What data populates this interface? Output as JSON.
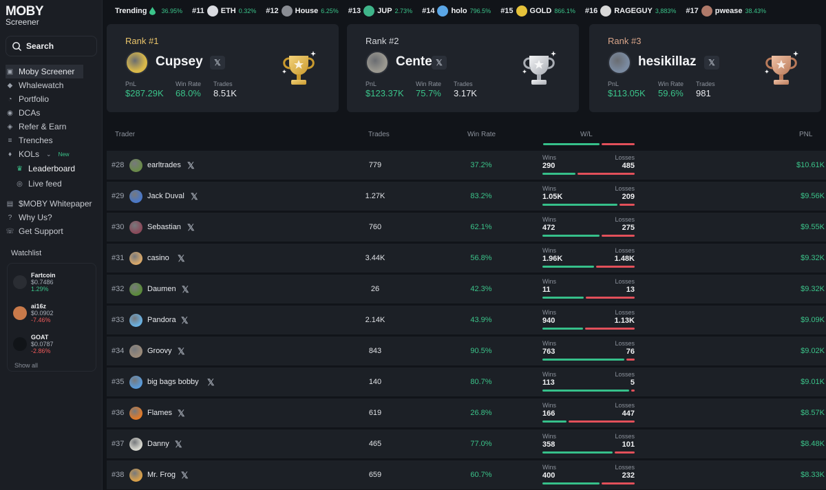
{
  "app": {
    "logo": "MOBY",
    "logo_sub": "Screener"
  },
  "search": {
    "label": "Search"
  },
  "nav": [
    {
      "label": "Moby Screener",
      "icon": "moby-icon"
    },
    {
      "label": "Whalewatch",
      "icon": "whale-icon"
    },
    {
      "label": "Portfolio",
      "icon": "pie-chart-icon"
    },
    {
      "label": "DCAs",
      "icon": "dca-icon"
    },
    {
      "label": "Refer & Earn",
      "icon": "gift-icon"
    },
    {
      "label": "Trenches",
      "icon": "trenches-icon"
    },
    {
      "label": "KOLs",
      "icon": "microphone-icon",
      "badge": "New"
    },
    {
      "label": "Leaderboard",
      "icon": "trophy-icon"
    },
    {
      "label": "Live feed",
      "icon": "broadcast-icon"
    },
    {
      "label": "$MOBY Whitepaper",
      "icon": "book-icon"
    },
    {
      "label": "Why Us?",
      "icon": "question-icon"
    },
    {
      "label": "Get Support",
      "icon": "support-icon"
    }
  ],
  "watchlist": {
    "title": "Watchlist",
    "items": [
      {
        "name": "Fartcoin",
        "price": "$0.7486",
        "change": "1.29%",
        "dir": "up",
        "color": "#2a2d33"
      },
      {
        "name": "ai16z",
        "price": "$0.0902",
        "change": "-7.46%",
        "dir": "down",
        "color": "#c97a4a"
      },
      {
        "name": "GOAT",
        "price": "$0.0787",
        "change": "-2.86%",
        "dir": "down",
        "color": "#111418"
      }
    ],
    "show_all": "Show all"
  },
  "trending": {
    "label": "Trending",
    "lead_pct": "36.95%",
    "items": [
      {
        "rank": "#11",
        "ticker": "ETH",
        "pct": "0.32%",
        "color": "#d9dbe0"
      },
      {
        "rank": "#12",
        "ticker": "House",
        "pct": "6.25%",
        "color": "#8a8d94"
      },
      {
        "rank": "#13",
        "ticker": "JUP",
        "pct": "2.73%",
        "color": "#3fb58a"
      },
      {
        "rank": "#14",
        "ticker": "holo",
        "pct": "796.5%",
        "color": "#5aa6e6"
      },
      {
        "rank": "#15",
        "ticker": "GOLD",
        "pct": "866.1%",
        "color": "#e6c23a"
      },
      {
        "rank": "#16",
        "ticker": "RAGEGUY",
        "pct": "3,883%",
        "color": "#d8d8d8"
      },
      {
        "rank": "#17",
        "ticker": "pwease",
        "pct": "38.43%",
        "color": "#b07a6a"
      }
    ]
  },
  "podium": [
    {
      "rank": "Rank #1",
      "name": "Cupsey",
      "pnl_label": "PnL",
      "pnl": "$287.29K",
      "winrate_label": "Win Rate",
      "winrate": "68.0%",
      "trades_label": "Trades",
      "trades": "8.51K",
      "rank_color": "#e9c46a",
      "trophy": "gold",
      "avatar_color": "#d8b84a"
    },
    {
      "rank": "Rank #2",
      "name": "Cented",
      "pnl_label": "PnL",
      "pnl": "$123.37K",
      "winrate_label": "Win Rate",
      "winrate": "75.7%",
      "trades_label": "Trades",
      "trades": "3.17K",
      "rank_color": "#d6d8dc",
      "trophy": "silver",
      "avatar_color": "#9a9890"
    },
    {
      "rank": "Rank #3",
      "name": "hesikillaz",
      "pnl_label": "PnL",
      "pnl": "$113.05K",
      "winrate_label": "Win Rate",
      "winrate": "59.6%",
      "trades_label": "Trades",
      "trades": "981",
      "rank_color": "#d9a58a",
      "trophy": "bronze",
      "avatar_color": "#7a8aa0"
    }
  ],
  "table": {
    "headers": {
      "trader": "Trader",
      "trades": "Trades",
      "winrate": "Win Rate",
      "wl": "W/L",
      "pnl": "PNL"
    },
    "wins_label": "Wins",
    "losses_label": "Losses",
    "rows": [
      {
        "rank": "#28",
        "name": "earltrades",
        "trades": "779",
        "winrate": "37.2%",
        "wins": "290",
        "losses": "485",
        "win_frac": 0.37,
        "pnl": "$10.61K",
        "color": "#6a8a4a"
      },
      {
        "rank": "#29",
        "name": "Jack Duval",
        "trades": "1.27K",
        "winrate": "83.2%",
        "wins": "1.05K",
        "losses": "209",
        "win_frac": 0.83,
        "pnl": "$9.56K",
        "color": "#4a78c8"
      },
      {
        "rank": "#30",
        "name": "Sebastian",
        "trades": "760",
        "winrate": "62.1%",
        "wins": "472",
        "losses": "275",
        "win_frac": 0.63,
        "pnl": "$9.55K",
        "color": "#8a4a5a"
      },
      {
        "rank": "#31",
        "name": "casino",
        "trades": "3.44K",
        "winrate": "56.8%",
        "wins": "1.96K",
        "losses": "1.48K",
        "win_frac": 0.57,
        "pnl": "$9.32K",
        "color": "#d8a86a"
      },
      {
        "rank": "#32",
        "name": "Daumen",
        "trades": "26",
        "winrate": "42.3%",
        "wins": "11",
        "losses": "13",
        "win_frac": 0.46,
        "pnl": "$9.32K",
        "color": "#5a8a3a"
      },
      {
        "rank": "#33",
        "name": "Pandora",
        "trades": "2.14K",
        "winrate": "43.9%",
        "wins": "940",
        "losses": "1.13K",
        "win_frac": 0.45,
        "pnl": "$9.09K",
        "color": "#6ab0e0"
      },
      {
        "rank": "#34",
        "name": "Groovy",
        "trades": "843",
        "winrate": "90.5%",
        "wins": "763",
        "losses": "76",
        "win_frac": 0.91,
        "pnl": "$9.02K",
        "color": "#9a8a7a"
      },
      {
        "rank": "#35",
        "name": "big bags bobby",
        "trades": "140",
        "winrate": "80.7%",
        "wins": "113",
        "losses": "5",
        "win_frac": 0.96,
        "pnl": "$9.01K",
        "color": "#5a9ad8"
      },
      {
        "rank": "#36",
        "name": "Flames",
        "trades": "619",
        "winrate": "26.8%",
        "wins": "166",
        "losses": "447",
        "win_frac": 0.27,
        "pnl": "$8.57K",
        "color": "#e07a2a"
      },
      {
        "rank": "#37",
        "name": "Danny",
        "trades": "465",
        "winrate": "77.0%",
        "wins": "358",
        "losses": "101",
        "win_frac": 0.78,
        "pnl": "$8.48K",
        "color": "#d8d8d0"
      },
      {
        "rank": "#38",
        "name": "Mr. Frog",
        "trades": "659",
        "winrate": "60.7%",
        "wins": "400",
        "losses": "232",
        "win_frac": 0.63,
        "pnl": "$8.33K",
        "color": "#d8a04a"
      }
    ]
  }
}
